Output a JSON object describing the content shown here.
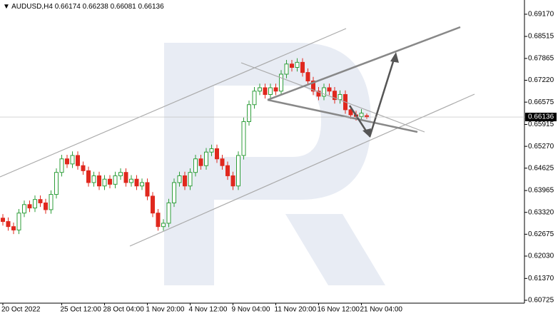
{
  "chart_data": {
    "type": "candlestick",
    "symbol": "AUDUSD,H4",
    "categories": [
      "20 Oct 2022",
      null,
      null,
      null,
      null,
      null,
      null,
      null,
      null,
      null,
      null,
      "25 Oct 12:00",
      null,
      null,
      null,
      null,
      null,
      null,
      null,
      "28 Oct 04:00",
      null,
      null,
      null,
      null,
      null,
      null,
      null,
      "1 Nov 20:00",
      null,
      null,
      null,
      null,
      null,
      null,
      null,
      "4 Nov 12:00",
      null,
      null,
      null,
      null,
      null,
      null,
      null,
      "9 Nov 04:00",
      null,
      null,
      null,
      null,
      null,
      null,
      null,
      "11 Nov 20:00",
      null,
      null,
      null,
      null,
      null,
      null,
      null,
      "16 Nov 12:00",
      null,
      null,
      null,
      null,
      null,
      null,
      null,
      "21 Nov 04:00",
      null
    ],
    "open": [
      0.6315,
      0.6305,
      0.629,
      0.628,
      0.633,
      0.6355,
      0.6345,
      0.637,
      0.636,
      0.634,
      0.6385,
      0.645,
      0.649,
      0.6475,
      0.65,
      0.647,
      0.6455,
      0.642,
      0.644,
      0.641,
      0.643,
      0.6415,
      0.644,
      0.645,
      0.642,
      0.643,
      0.641,
      0.642,
      0.638,
      0.633,
      0.629,
      0.63,
      0.636,
      0.642,
      0.644,
      0.641,
      0.645,
      0.649,
      0.647,
      0.651,
      0.652,
      0.649,
      0.647,
      0.644,
      0.641,
      0.65,
      0.66,
      0.665,
      0.669,
      0.67,
      0.668,
      0.67,
      0.669,
      0.674,
      0.677,
      0.676,
      0.6775,
      0.6745,
      0.672,
      0.669,
      0.6675,
      0.67,
      0.669,
      0.6665,
      0.668,
      0.6635,
      0.662,
      0.6615,
      0.66174
    ],
    "high": [
      0.6327,
      0.6317,
      0.6302,
      0.6342,
      0.6367,
      0.6367,
      0.6382,
      0.6382,
      0.6372,
      0.6397,
      0.6462,
      0.6502,
      0.6502,
      0.6512,
      0.6512,
      0.6482,
      0.6467,
      0.6452,
      0.6452,
      0.6442,
      0.6442,
      0.6452,
      0.6462,
      0.6462,
      0.6442,
      0.6442,
      0.6432,
      0.6432,
      0.6392,
      0.6342,
      0.6312,
      0.6372,
      0.6432,
      0.6452,
      0.6452,
      0.6462,
      0.6502,
      0.6502,
      0.6522,
      0.6532,
      0.6532,
      0.6502,
      0.6482,
      0.6452,
      0.6512,
      0.6612,
      0.6662,
      0.6702,
      0.6712,
      0.6712,
      0.6712,
      0.6712,
      0.6752,
      0.6782,
      0.6782,
      0.6787,
      0.6787,
      0.6757,
      0.6732,
      0.6702,
      0.6712,
      0.6712,
      0.6702,
      0.6692,
      0.6692,
      0.6647,
      0.6632,
      0.6637,
      0.66238
    ],
    "low": [
      0.6293,
      0.6278,
      0.6268,
      0.6268,
      0.6318,
      0.6333,
      0.6333,
      0.6348,
      0.6328,
      0.6328,
      0.6373,
      0.6438,
      0.6463,
      0.6463,
      0.6458,
      0.6443,
      0.6408,
      0.6408,
      0.6398,
      0.6398,
      0.6403,
      0.6403,
      0.6428,
      0.6408,
      0.6408,
      0.6398,
      0.6398,
      0.6368,
      0.6318,
      0.6278,
      0.6278,
      0.6288,
      0.6348,
      0.6408,
      0.6398,
      0.6398,
      0.6438,
      0.6458,
      0.6458,
      0.6498,
      0.6478,
      0.6458,
      0.6428,
      0.6398,
      0.6398,
      0.6488,
      0.6588,
      0.6638,
      0.6678,
      0.6668,
      0.6668,
      0.6678,
      0.6678,
      0.6728,
      0.6748,
      0.6748,
      0.6733,
      0.6708,
      0.6678,
      0.6663,
      0.6663,
      0.6678,
      0.6653,
      0.6653,
      0.6623,
      0.6608,
      0.6603,
      0.6603,
      0.66081
    ],
    "close": [
      0.6305,
      0.629,
      0.628,
      0.633,
      0.6355,
      0.6345,
      0.637,
      0.636,
      0.634,
      0.6385,
      0.645,
      0.649,
      0.6475,
      0.65,
      0.647,
      0.6455,
      0.642,
      0.644,
      0.641,
      0.643,
      0.6415,
      0.644,
      0.645,
      0.642,
      0.643,
      0.641,
      0.642,
      0.638,
      0.633,
      0.629,
      0.63,
      0.636,
      0.642,
      0.644,
      0.641,
      0.645,
      0.649,
      0.647,
      0.651,
      0.652,
      0.649,
      0.647,
      0.644,
      0.641,
      0.65,
      0.66,
      0.665,
      0.669,
      0.67,
      0.668,
      0.67,
      0.669,
      0.674,
      0.677,
      0.676,
      0.6775,
      0.6745,
      0.672,
      0.669,
      0.6675,
      0.67,
      0.669,
      0.6665,
      0.668,
      0.6635,
      0.662,
      0.6615,
      0.6625,
      0.66136
    ],
    "up_color": "#2e9e3a",
    "down_color": "#e0281e",
    "ylim": [
      0.6064,
      0.6959
    ],
    "yticks": [
      {
        "value": 0.6917,
        "label": "0.69170"
      },
      0.68515,
      0.67865,
      {
        "value": 0.6722,
        "label": "0.67220"
      },
      0.66575,
      0.65915,
      {
        "value": 0.6527,
        "label": "0.65270"
      },
      0.64625,
      0.63965,
      {
        "value": 0.6332,
        "label": "0.63320"
      },
      0.62675,
      {
        "value": 0.6203,
        "label": "0.62030"
      },
      {
        "value": 0.6137,
        "label": "0.61370"
      },
      0.60725
    ]
  }
}
